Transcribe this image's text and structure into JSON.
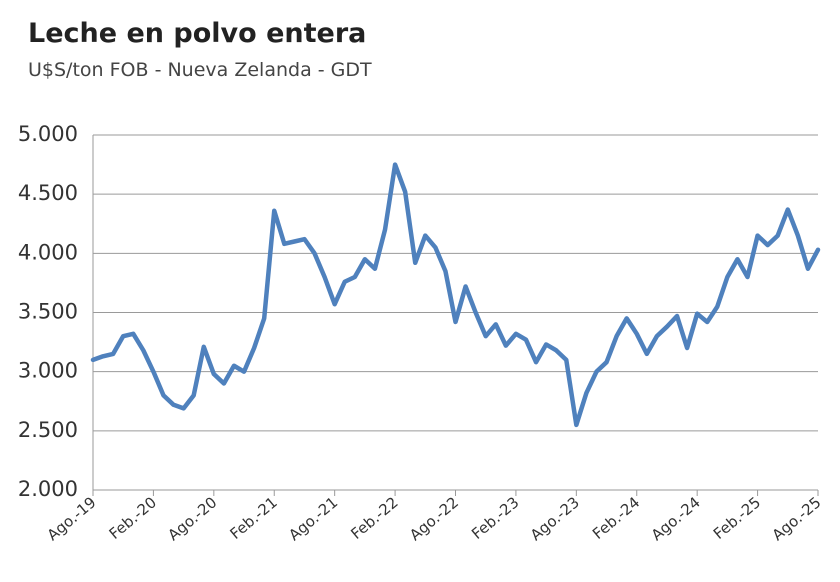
{
  "chart_data": {
    "type": "line",
    "title": "Leche en polvo entera",
    "subtitle": "U$S/ton FOB - Nueva Zelanda - GDT",
    "categories": [
      "Ago.-19",
      null,
      null,
      null,
      null,
      null,
      "Feb.-20",
      null,
      null,
      null,
      null,
      null,
      "Ago.-20",
      null,
      null,
      null,
      null,
      null,
      "Feb.-21",
      null,
      null,
      null,
      null,
      null,
      "Ago.-21",
      null,
      null,
      null,
      null,
      null,
      "Feb.-22",
      null,
      null,
      null,
      null,
      null,
      "Ago.-22",
      null,
      null,
      null,
      null,
      null,
      "Feb.-23",
      null,
      null,
      null,
      null,
      null,
      "Ago.-23",
      null,
      null,
      null,
      null,
      null,
      "Feb.-24",
      null,
      null,
      null,
      null,
      null,
      "Ago.-24",
      null,
      null,
      null,
      null,
      null,
      "Feb.-25",
      null,
      null,
      null,
      null,
      null,
      "Ago.-25"
    ],
    "values": [
      3100,
      3130,
      3150,
      3300,
      3320,
      3180,
      3000,
      2800,
      2720,
      2690,
      2800,
      3210,
      2980,
      2900,
      3050,
      3000,
      3200,
      3450,
      4360,
      4080,
      4100,
      4120,
      4000,
      3800,
      3570,
      3760,
      3800,
      3950,
      3870,
      4200,
      4750,
      4520,
      3920,
      4150,
      4050,
      3850,
      3420,
      3720,
      3500,
      3300,
      3400,
      3220,
      3320,
      3270,
      3080,
      3230,
      3180,
      3100,
      2550,
      2820,
      3000,
      3080,
      3300,
      3450,
      3320,
      3150,
      3300,
      3380,
      3470,
      3200,
      3490,
      3420,
      3550,
      3800,
      3950,
      3800,
      4150,
      4070,
      4150,
      4370,
      4150,
      3870,
      4030
    ],
    "color": "#4f81bd",
    "ylim": [
      2000,
      5000
    ],
    "yticks": [
      {
        "value": 2000,
        "label": "2.000"
      },
      {
        "value": 2500,
        "label": "2.500"
      },
      {
        "value": 3000,
        "label": "3.000"
      },
      {
        "value": 3500,
        "label": "3.500"
      },
      {
        "value": 4000,
        "label": "4.000"
      },
      {
        "value": 4500,
        "label": "4.500"
      },
      {
        "value": 5000,
        "label": "5.000"
      }
    ],
    "grid": true
  }
}
